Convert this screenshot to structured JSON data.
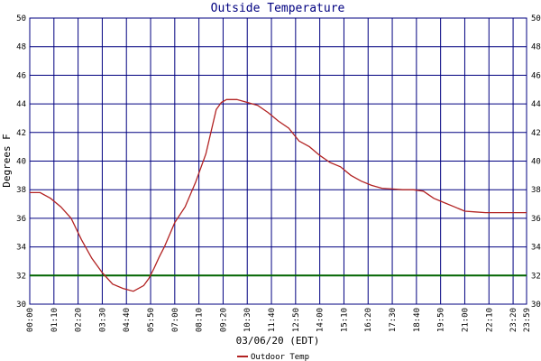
{
  "chart_data": {
    "type": "line",
    "title": "Outside Temperature",
    "xlabel": "03/06/20 (EDT)",
    "ylabel": "Degrees F",
    "ylim": [
      30,
      50
    ],
    "y_ticks": [
      30,
      32,
      34,
      36,
      38,
      40,
      42,
      44,
      46,
      48,
      50
    ],
    "x_tick_labels": [
      "00:00",
      "01:10",
      "02:20",
      "03:30",
      "04:40",
      "05:50",
      "07:00",
      "08:10",
      "09:20",
      "10:30",
      "11:40",
      "12:50",
      "14:00",
      "15:10",
      "16:20",
      "17:30",
      "18:40",
      "19:50",
      "21:00",
      "22:10",
      "23:20",
      "23:59"
    ],
    "x_range_minutes": [
      0,
      1439
    ],
    "grid": true,
    "legend_position": "bottom-center",
    "reference_line": {
      "value": 32,
      "color": "#006400"
    },
    "colors": {
      "grid": "#000080",
      "series": "#b22222",
      "title": "#000080"
    },
    "series": [
      {
        "name": "Outdoor Temp",
        "x": [
          0,
          30,
          60,
          90,
          120,
          150,
          180,
          210,
          240,
          270,
          300,
          330,
          345,
          360,
          375,
          390,
          420,
          450,
          480,
          510,
          540,
          555,
          570,
          600,
          630,
          660,
          690,
          720,
          750,
          780,
          810,
          840,
          870,
          900,
          930,
          960,
          990,
          1020,
          1050,
          1080,
          1110,
          1140,
          1170,
          1200,
          1230,
          1260,
          1290,
          1320,
          1350,
          1380,
          1410,
          1439
        ],
        "values": [
          37.8,
          37.8,
          37.4,
          36.8,
          36.0,
          34.5,
          33.2,
          32.2,
          31.4,
          31.1,
          30.9,
          31.3,
          31.8,
          32.5,
          33.3,
          34.0,
          35.7,
          36.8,
          38.5,
          40.5,
          43.6,
          44.1,
          44.3,
          44.3,
          44.1,
          43.9,
          43.4,
          42.8,
          42.3,
          41.4,
          41.0,
          40.4,
          39.9,
          39.6,
          39.0,
          38.6,
          38.3,
          38.1,
          38.05,
          38.0,
          38.0,
          37.9,
          37.4,
          37.1,
          36.8,
          36.5,
          36.45,
          36.4,
          36.4,
          36.4,
          36.4,
          36.4
        ]
      }
    ]
  }
}
